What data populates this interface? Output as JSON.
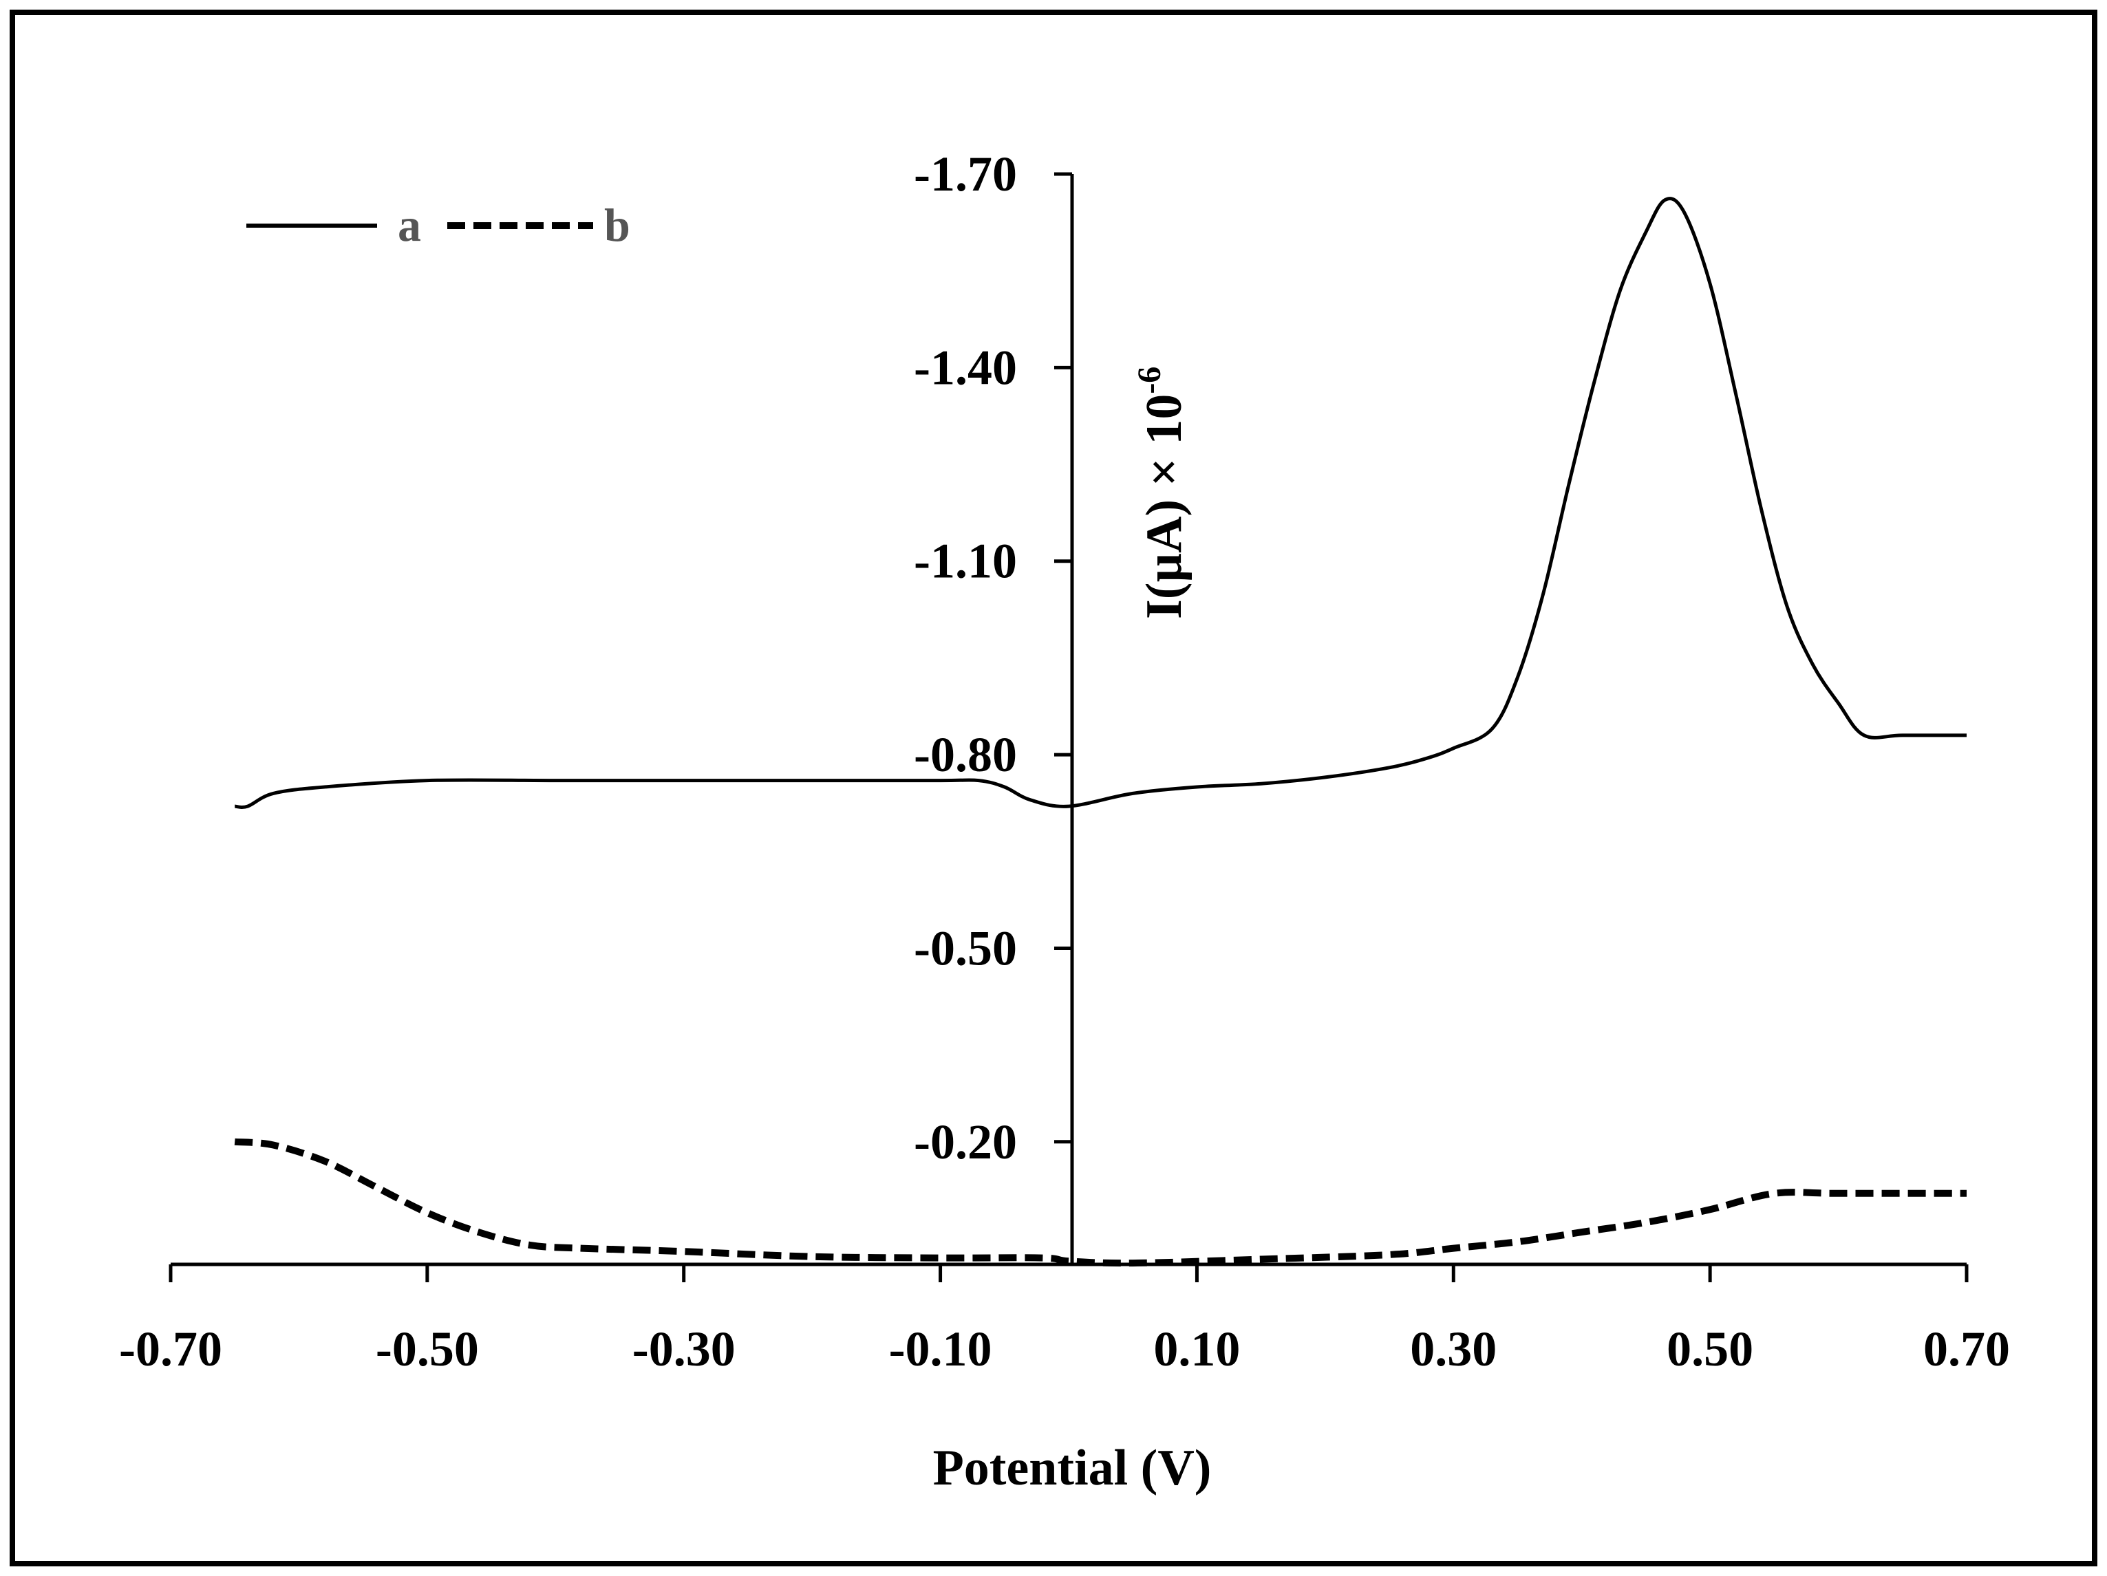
{
  "chart_data": {
    "type": "line",
    "title": "",
    "xlabel": "Potential (V)",
    "ylabel_main": "I(µA) × 10",
    "ylabel_sup": "-6",
    "xlim": [
      -0.7,
      0.7
    ],
    "ylim": [
      -0.01,
      -1.7
    ],
    "x_ticks": [
      -0.7,
      -0.5,
      -0.3,
      -0.1,
      0.1,
      0.3,
      0.5,
      0.7
    ],
    "x_tick_labels": [
      "-0.70",
      "-0.50",
      "-0.30",
      "-0.10",
      "0.10",
      "0.30",
      "0.50",
      "0.70"
    ],
    "y_ticks": [
      -1.7,
      -1.4,
      -1.1,
      -0.8,
      -0.5,
      -0.2
    ],
    "y_tick_labels": [
      "-1.70",
      "-1.40",
      "-1.10",
      "-0.80",
      "-0.50",
      "-0.20"
    ],
    "legend_position": "top-left",
    "series": [
      {
        "name": "a",
        "style": "solid",
        "color": "#000000",
        "x": [
          -0.65,
          -0.64,
          -0.62,
          -0.58,
          -0.5,
          -0.4,
          -0.3,
          -0.2,
          -0.1,
          -0.07,
          -0.05,
          -0.03,
          0.0,
          0.05,
          0.1,
          0.15,
          0.2,
          0.25,
          0.28,
          0.3,
          0.33,
          0.35,
          0.37,
          0.39,
          0.41,
          0.43,
          0.45,
          0.465,
          0.48,
          0.5,
          0.52,
          0.54,
          0.56,
          0.58,
          0.6,
          0.62,
          0.65,
          0.7
        ],
        "y": [
          -0.72,
          -0.72,
          -0.74,
          -0.75,
          -0.76,
          -0.76,
          -0.76,
          -0.76,
          -0.76,
          -0.76,
          -0.75,
          -0.73,
          -0.72,
          -0.74,
          -0.75,
          -0.755,
          -0.765,
          -0.78,
          -0.795,
          -0.81,
          -0.84,
          -0.92,
          -1.05,
          -1.22,
          -1.38,
          -1.52,
          -1.61,
          -1.66,
          -1.64,
          -1.53,
          -1.36,
          -1.18,
          -1.03,
          -0.94,
          -0.88,
          -0.83,
          -0.83,
          -0.83
        ]
      },
      {
        "name": "b",
        "style": "dashed",
        "color": "#000000",
        "x": [
          -0.65,
          -0.62,
          -0.58,
          -0.54,
          -0.5,
          -0.46,
          -0.42,
          -0.38,
          -0.3,
          -0.2,
          -0.1,
          -0.02,
          0.0,
          0.05,
          0.15,
          0.25,
          0.3,
          0.35,
          0.4,
          0.45,
          0.5,
          0.55,
          0.6,
          0.7
        ],
        "y": [
          -0.2,
          -0.195,
          -0.17,
          -0.13,
          -0.09,
          -0.06,
          -0.04,
          -0.035,
          -0.03,
          -0.022,
          -0.02,
          -0.02,
          -0.015,
          -0.012,
          -0.018,
          -0.025,
          -0.035,
          -0.045,
          -0.06,
          -0.075,
          -0.095,
          -0.12,
          -0.12,
          -0.12
        ]
      }
    ]
  }
}
